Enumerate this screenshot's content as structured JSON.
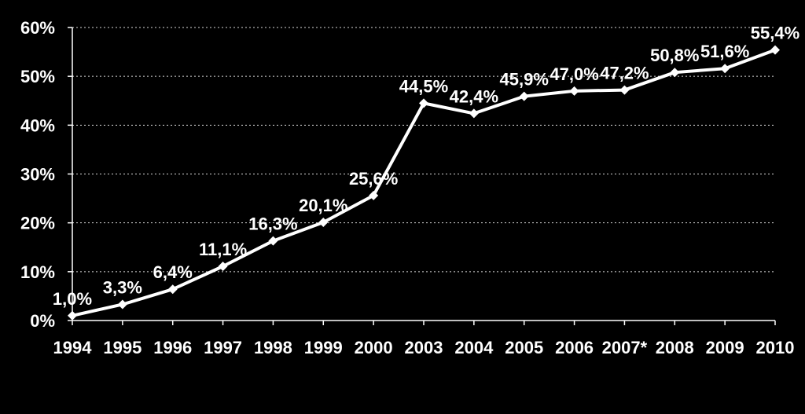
{
  "chart_data": {
    "type": "line",
    "title": "",
    "xlabel": "",
    "ylabel": "",
    "categories": [
      "1994",
      "1995",
      "1996",
      "1997",
      "1998",
      "1999",
      "2000",
      "2003",
      "2004",
      "2005",
      "2006",
      "2007*",
      "2008",
      "2009",
      "2010"
    ],
    "series": [
      {
        "values": [
          1.0,
          3.3,
          6.4,
          11.1,
          16.3,
          20.1,
          25.6,
          44.5,
          42.4,
          45.9,
          47.0,
          47.2,
          50.8,
          51.6,
          55.4
        ],
        "labels": [
          "1,0%",
          "3,3%",
          "6,4%",
          "11,1%",
          "16,3%",
          "20,1%",
          "25,6%",
          "44,5%",
          "42,4%",
          "45,9%",
          "47,0%",
          "47,2%",
          "50,8%",
          "51,6%",
          "55,4%"
        ]
      }
    ],
    "ylim": [
      0,
      60
    ],
    "yticks": [
      0,
      10,
      20,
      30,
      40,
      50,
      60
    ],
    "ytick_labels": [
      "0%",
      "10%",
      "20%",
      "30%",
      "40%",
      "50%",
      "60%"
    ],
    "grid": true,
    "marker": "diamond",
    "colors": {
      "background": "#000000",
      "series": "#ffffff",
      "text": "#ffffff"
    }
  }
}
